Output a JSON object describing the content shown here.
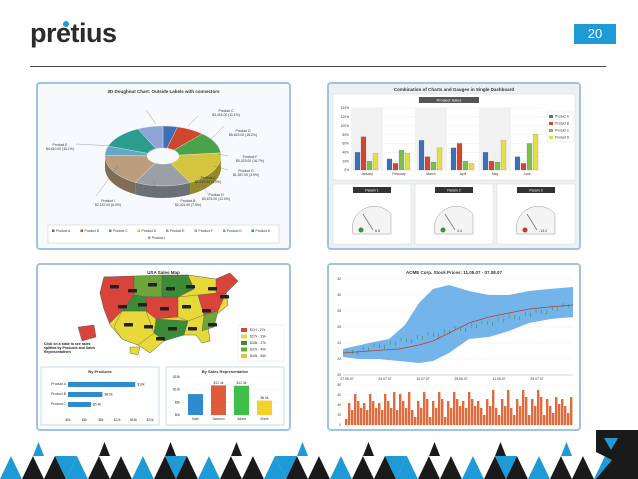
{
  "brand": {
    "name": "pretius"
  },
  "page": {
    "number": "20"
  },
  "colors": {
    "accent": "#1e9ad6",
    "footer_dark": "#1a1a1a",
    "panel_border": "#9fc3e6"
  },
  "donut": {
    "title": "3D Doughnut Chart: Outside Labels with connectors",
    "labels": [
      {
        "name": "Product F",
        "value": "$5,023.00 (16.7%)"
      },
      {
        "name": "Product G",
        "value": "$1,547.00 (4.9%)"
      },
      {
        "name": "Product H",
        "value": "$3,675.00 (12.0%)"
      },
      {
        "name": "Product I",
        "value": "$2,187.00 (6.9%)"
      },
      {
        "name": "Product A",
        "value": "$1,223.00 (3.9%)"
      },
      {
        "name": "Product B",
        "value": "$2,401.00 (7.5%)"
      },
      {
        "name": "Product C",
        "value": "$3,424.00 (11.1%)"
      },
      {
        "name": "Product D",
        "value": "$5,619.00 (18.2%)"
      },
      {
        "name": "Product E",
        "value": "$4,610.00 (15.1%)"
      }
    ],
    "legend": [
      "Product A",
      "Product B",
      "Product C",
      "Product D",
      "Product E",
      "Product F",
      "Product G",
      "Product H",
      "Product I"
    ]
  },
  "combo": {
    "title": "Combination of Charts and Gauges in Single Dashboard",
    "subtitle": "Product Sales",
    "yticks": [
      "140%",
      "120%",
      "100%",
      "80%",
      "60%",
      "40%",
      "20%",
      "0%"
    ],
    "months": [
      "January",
      "February",
      "March",
      "April",
      "May",
      "June"
    ],
    "legend": [
      "Product A",
      "Product B",
      "Product C",
      "Product D"
    ],
    "gauges": [
      {
        "title": "Param 1",
        "value": "6.5"
      },
      {
        "title": "Param 2",
        "value": "3.4"
      },
      {
        "title": "Param 3",
        "value": "-13.2"
      }
    ]
  },
  "usa": {
    "title": "USA Sales Map",
    "callout": "Click on a state to see sales splitted by Products and Sales Representatives",
    "range_legend": [
      "$CH - 27k",
      "$27k - 33k",
      "$33k - 37k",
      "$37k - 40k",
      "$40k - 56k"
    ],
    "by_products": {
      "title": "By Products",
      "rows": [
        {
          "name": "Product A",
          "value": "$16k",
          "frac": 0.82
        },
        {
          "name": "Product B",
          "value": "$8.5k",
          "frac": 0.42
        },
        {
          "name": "Product C",
          "value": "$5.4k",
          "frac": 0.28
        }
      ],
      "xticks": [
        "$0k",
        "$4k",
        "$8k",
        "$12k",
        "$16k",
        "$20k"
      ]
    },
    "by_reps": {
      "title": "By Sales Representative",
      "yticks": [
        "$15k",
        "$10k",
        "$5k",
        "$0k"
      ],
      "bars": [
        {
          "name": "Kate",
          "value": "",
          "frac": 0.55,
          "color": "#2f8bd0"
        },
        {
          "name": "Jackson",
          "value": "$12.4k",
          "frac": 0.78,
          "color": "#e05b3a"
        },
        {
          "name": "Adam",
          "value": "$12.3k",
          "frac": 0.77,
          "color": "#3fbf4a"
        },
        {
          "name": "Brent",
          "value": "$6.5k",
          "frac": 0.38,
          "color": "#f2d12e"
        }
      ]
    }
  },
  "stock": {
    "title": "ACME Corp. Stock Prices: 11.05.07 - 07.08.07",
    "yticks": [
      "32",
      "30",
      "28",
      "26",
      "24",
      "22",
      "20"
    ],
    "xticks": [
      "07.06.07",
      "24.07.07",
      "10.07.07",
      "25.06.07",
      "11.06.07",
      "25.07.07"
    ],
    "vol_ticks": [
      "80",
      "60",
      "40",
      "20",
      "0"
    ]
  }
}
